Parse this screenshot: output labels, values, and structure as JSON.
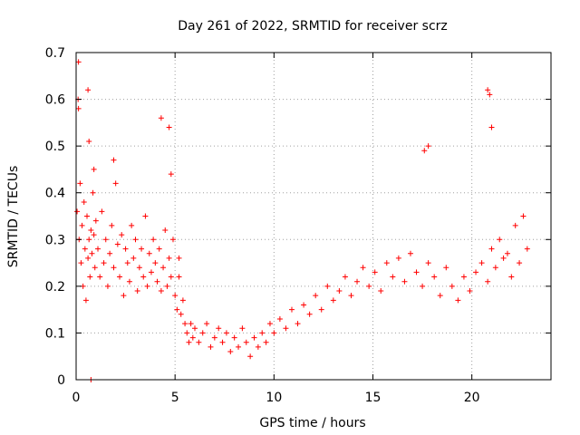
{
  "chart_data": {
    "type": "scatter",
    "title": "Day 261 of 2022, SRMTID for receiver scrz",
    "xlabel": "GPS time / hours",
    "ylabel": "SRMTID / TECUs",
    "xlim": [
      0,
      24
    ],
    "ylim": [
      0,
      0.7
    ],
    "xticks": [
      0,
      5,
      10,
      15,
      20
    ],
    "yticks": [
      0,
      0.1,
      0.2,
      0.3,
      0.4,
      0.5,
      0.6,
      0.7
    ],
    "xtick_labels": [
      "0",
      "5",
      "10",
      "15",
      "20"
    ],
    "ytick_labels": [
      "0",
      "0.1",
      "0.2",
      "0.3",
      "0.4",
      "0.5",
      "0.6",
      "0.7"
    ],
    "grid": true,
    "marker": "+",
    "color": "#ff0000",
    "series": [
      {
        "name": "SRMTID",
        "x": [
          0.05,
          0.1,
          0.15,
          0.2,
          0.25,
          0.3,
          0.35,
          0.4,
          0.45,
          0.5,
          0.55,
          0.6,
          0.65,
          0.7,
          0.75,
          0.8,
          0.85,
          0.9,
          0.95,
          1.0,
          1.1,
          1.2,
          1.3,
          1.4,
          1.5,
          1.6,
          1.7,
          1.8,
          1.9,
          2.0,
          2.1,
          2.2,
          2.3,
          2.4,
          2.5,
          2.6,
          2.7,
          2.8,
          2.9,
          3.0,
          3.1,
          3.2,
          3.3,
          3.4,
          3.5,
          3.6,
          3.7,
          3.8,
          3.9,
          4.0,
          4.1,
          4.2,
          4.3,
          4.4,
          4.5,
          4.6,
          4.7,
          4.8,
          4.9,
          5.0,
          5.1,
          5.2,
          5.3,
          5.4,
          5.5,
          5.6,
          5.7,
          5.8,
          5.9,
          6.0,
          6.2,
          6.4,
          6.6,
          6.8,
          7.0,
          7.2,
          7.4,
          7.6,
          7.8,
          8.0,
          8.2,
          8.4,
          8.6,
          8.8,
          9.0,
          9.2,
          9.4,
          9.6,
          9.8,
          10.0,
          10.3,
          10.6,
          10.9,
          11.2,
          11.5,
          11.8,
          12.1,
          12.4,
          12.7,
          13.0,
          13.3,
          13.6,
          13.9,
          14.2,
          14.5,
          14.8,
          15.1,
          15.4,
          15.7,
          16.0,
          16.3,
          16.6,
          16.9,
          17.2,
          17.5,
          17.8,
          18.1,
          18.4,
          18.7,
          19.0,
          19.3,
          19.6,
          19.9,
          20.2,
          20.5,
          20.8,
          21.0,
          21.2,
          21.4,
          21.6,
          21.8,
          22.0,
          22.2,
          22.4,
          22.6,
          22.8,
          0.12,
          0.12,
          0.6,
          0.65,
          0.75,
          4.3,
          4.7,
          4.8,
          17.6,
          17.8,
          20.8,
          20.9,
          21.0,
          0.9,
          1.9,
          5.2
        ],
        "y": [
          0.36,
          0.6,
          0.3,
          0.42,
          0.25,
          0.33,
          0.2,
          0.38,
          0.28,
          0.17,
          0.35,
          0.26,
          0.3,
          0.22,
          0.32,
          0.27,
          0.4,
          0.31,
          0.24,
          0.34,
          0.28,
          0.22,
          0.36,
          0.25,
          0.3,
          0.2,
          0.27,
          0.33,
          0.24,
          0.42,
          0.29,
          0.22,
          0.31,
          0.18,
          0.28,
          0.25,
          0.21,
          0.33,
          0.26,
          0.3,
          0.19,
          0.24,
          0.28,
          0.22,
          0.35,
          0.2,
          0.27,
          0.23,
          0.3,
          0.25,
          0.21,
          0.28,
          0.19,
          0.24,
          0.32,
          0.2,
          0.26,
          0.22,
          0.3,
          0.18,
          0.15,
          0.22,
          0.14,
          0.17,
          0.12,
          0.1,
          0.08,
          0.12,
          0.09,
          0.11,
          0.08,
          0.1,
          0.12,
          0.07,
          0.09,
          0.11,
          0.08,
          0.1,
          0.06,
          0.09,
          0.07,
          0.11,
          0.08,
          0.05,
          0.09,
          0.07,
          0.1,
          0.08,
          0.12,
          0.1,
          0.13,
          0.11,
          0.15,
          0.12,
          0.16,
          0.14,
          0.18,
          0.15,
          0.2,
          0.17,
          0.19,
          0.22,
          0.18,
          0.21,
          0.24,
          0.2,
          0.23,
          0.19,
          0.25,
          0.22,
          0.26,
          0.21,
          0.27,
          0.23,
          0.2,
          0.25,
          0.22,
          0.18,
          0.24,
          0.2,
          0.17,
          0.22,
          0.19,
          0.23,
          0.25,
          0.21,
          0.28,
          0.24,
          0.3,
          0.26,
          0.27,
          0.22,
          0.33,
          0.25,
          0.35,
          0.28,
          0.58,
          0.68,
          0.62,
          0.51,
          0.0,
          0.56,
          0.54,
          0.44,
          0.49,
          0.5,
          0.62,
          0.61,
          0.54,
          0.45,
          0.47,
          0.26
        ]
      }
    ]
  }
}
